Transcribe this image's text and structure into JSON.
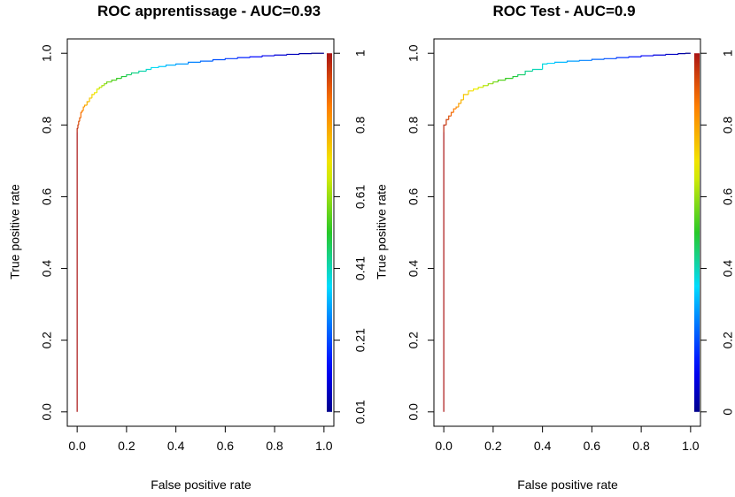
{
  "chart_data": [
    {
      "type": "line",
      "title": "ROC apprentissage - AUC=0.93",
      "xlabel": "False positive rate",
      "ylabel": "True positive rate",
      "xlim": [
        0,
        1
      ],
      "ylim": [
        0,
        1
      ],
      "x_ticks": [
        "0.0",
        "0.2",
        "0.4",
        "0.6",
        "0.8",
        "1.0"
      ],
      "y_ticks": [
        "0.0",
        "0.2",
        "0.4",
        "0.6",
        "0.8",
        "1.0"
      ],
      "colorbar_ticks": [
        "0.01",
        "0.21",
        "0.41",
        "0.61",
        "0.8",
        "1"
      ],
      "grid": false,
      "series": [
        {
          "x": [
            0.0,
            0.0,
            0.003,
            0.006,
            0.01,
            0.015,
            0.02,
            0.025,
            0.03,
            0.04,
            0.05,
            0.06,
            0.07,
            0.08,
            0.09,
            0.1,
            0.11,
            0.12,
            0.14,
            0.16,
            0.18,
            0.2,
            0.22,
            0.25,
            0.28,
            0.3,
            0.33,
            0.36,
            0.4,
            0.45,
            0.5,
            0.55,
            0.6,
            0.65,
            0.7,
            0.75,
            0.8,
            0.85,
            0.9,
            0.95,
            1.0
          ],
          "y": [
            0.0,
            0.78,
            0.79,
            0.8,
            0.81,
            0.82,
            0.835,
            0.84,
            0.85,
            0.855,
            0.865,
            0.875,
            0.885,
            0.89,
            0.9,
            0.905,
            0.91,
            0.915,
            0.92,
            0.925,
            0.93,
            0.935,
            0.94,
            0.945,
            0.95,
            0.955,
            0.96,
            0.963,
            0.967,
            0.97,
            0.975,
            0.978,
            0.982,
            0.985,
            0.988,
            0.99,
            0.993,
            0.995,
            0.997,
            0.999,
            1.0
          ]
        }
      ]
    },
    {
      "type": "line",
      "title": "ROC Test - AUC=0.9",
      "xlabel": "False positive rate",
      "ylabel": "True positive rate",
      "xlim": [
        0,
        1
      ],
      "ylim": [
        0,
        1
      ],
      "x_ticks": [
        "0.0",
        "0.2",
        "0.4",
        "0.6",
        "0.8",
        "1.0"
      ],
      "y_ticks": [
        "0.0",
        "0.2",
        "0.4",
        "0.6",
        "0.8",
        "1.0"
      ],
      "colorbar_ticks": [
        "0",
        "0.2",
        "0.4",
        "0.6",
        "0.8",
        "1"
      ],
      "grid": false,
      "series": [
        {
          "x": [
            0.0,
            0.0,
            0.01,
            0.02,
            0.03,
            0.04,
            0.05,
            0.06,
            0.07,
            0.08,
            0.1,
            0.12,
            0.14,
            0.16,
            0.18,
            0.2,
            0.22,
            0.25,
            0.28,
            0.3,
            0.33,
            0.36,
            0.4,
            0.42,
            0.45,
            0.5,
            0.55,
            0.6,
            0.65,
            0.7,
            0.75,
            0.8,
            0.85,
            0.9,
            0.95,
            0.98,
            1.0
          ],
          "y": [
            0.0,
            0.78,
            0.8,
            0.815,
            0.825,
            0.835,
            0.845,
            0.85,
            0.86,
            0.87,
            0.885,
            0.895,
            0.9,
            0.905,
            0.91,
            0.915,
            0.92,
            0.925,
            0.93,
            0.935,
            0.94,
            0.95,
            0.955,
            0.97,
            0.972,
            0.975,
            0.978,
            0.98,
            0.983,
            0.985,
            0.988,
            0.99,
            0.993,
            0.995,
            0.997,
            0.999,
            1.0
          ]
        }
      ]
    }
  ]
}
